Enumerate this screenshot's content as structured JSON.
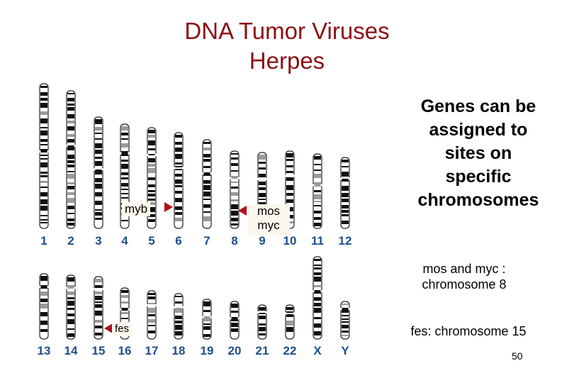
{
  "title": {
    "line1": "DNA Tumor Viruses",
    "line2": "Herpes"
  },
  "karyotype": {
    "row1_numbers": [
      "1",
      "2",
      "3",
      "4",
      "5",
      "6",
      "7",
      "8",
      "9",
      "10",
      "11",
      "12"
    ],
    "row2_numbers": [
      "13",
      "14",
      "15",
      "16",
      "17",
      "18",
      "19",
      "20",
      "21",
      "22",
      "X",
      "Y"
    ]
  },
  "labels": {
    "myb": "myb",
    "mos": "mos",
    "myc": "myc",
    "fes": "fes"
  },
  "side_text": {
    "line1": "Genes can be",
    "line2": "assigned to",
    "line3": "sites on",
    "line4": "specific",
    "line5": "chromosomes"
  },
  "notes": {
    "mos_myc_line1": "mos and myc :",
    "mos_myc_line2": "chromosome 8",
    "fes": "fes: chromosome 15"
  },
  "page_number": "50",
  "colors": {
    "title": "#8b0f14",
    "chromosome_number": "#1f4e8c",
    "pointer": "#b0101c"
  }
}
